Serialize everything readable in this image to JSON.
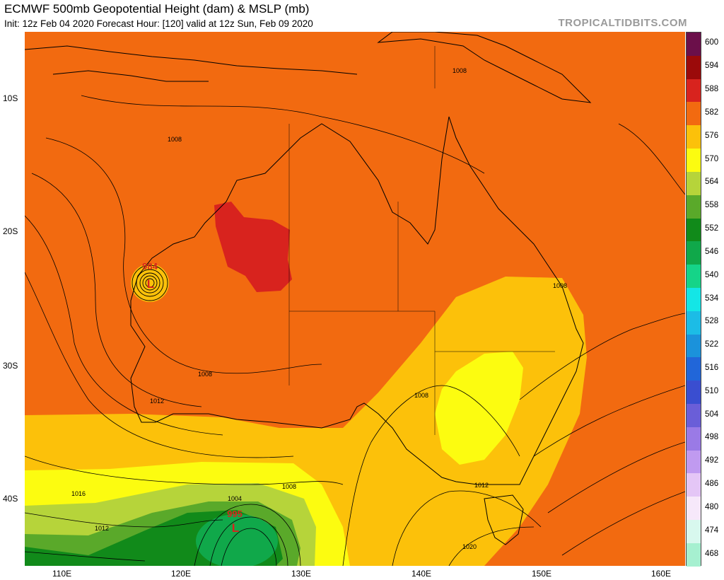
{
  "header": {
    "title": "ECMWF 500mb Geopotential Height (dam) & MSLP (mb)",
    "subtitle": "Init: 12z Feb 04 2020   Forecast Hour: [120]   valid at 12z Sun, Feb 09 2020",
    "credit": "TROPICALTIDBITS.COM"
  },
  "axes": {
    "lat_labels": [
      "10S",
      "20S",
      "30S",
      "40S"
    ],
    "lon_labels": [
      "110E",
      "120E",
      "130E",
      "140E",
      "150E",
      "160E"
    ]
  },
  "colorbar": {
    "levels": [
      "600",
      "594",
      "588",
      "582",
      "576",
      "570",
      "564",
      "558",
      "552",
      "546",
      "540",
      "534",
      "528",
      "522",
      "516",
      "510",
      "504",
      "498",
      "492",
      "486",
      "480",
      "474",
      "468"
    ],
    "colors": [
      "#6b0f4a",
      "#9b0a0a",
      "#d8231e",
      "#f26a10",
      "#fcc10a",
      "#fcfc10",
      "#b6d43a",
      "#5aa92a",
      "#118a1a",
      "#10a84a",
      "#15d488",
      "#14e6e6",
      "#1cbce6",
      "#1b92db",
      "#2166d9",
      "#3a4ed0",
      "#6a5ed8",
      "#9a7ae6",
      "#c09af0",
      "#e4c6f6",
      "#f6e8fa",
      "#d8f8ee",
      "#a6f0d0"
    ]
  },
  "map": {
    "background": "#f26a10",
    "isobar_labels": [
      "1008",
      "1008",
      "1008",
      "1008",
      "1008",
      "1012",
      "1012",
      "1016",
      "1012",
      "1004",
      "1008",
      "1020"
    ],
    "lows": [
      {
        "pressure": "984",
        "symbol": "L"
      },
      {
        "pressure": "995",
        "symbol": "L"
      }
    ]
  }
}
